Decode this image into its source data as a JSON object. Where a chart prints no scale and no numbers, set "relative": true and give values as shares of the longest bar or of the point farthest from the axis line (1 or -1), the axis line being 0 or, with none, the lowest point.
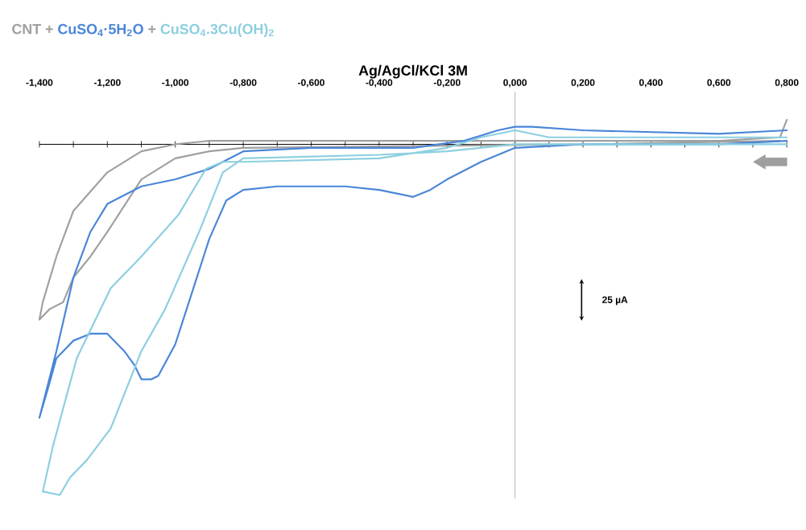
{
  "chart_data": {
    "type": "line",
    "relative": true,
    "xlabel": "Ag/AgCl/KCl 3M",
    "legend": "top left",
    "annotations": [
      "+",
      "+",
      "25 µA"
    ],
    "xlim": [
      -1.4,
      0.8
    ],
    "xticks": [
      {
        "value": -1.4,
        "label": "-1,400"
      },
      {
        "value": -1.2,
        "label": "-1,200"
      },
      {
        "value": -1.0,
        "label": "-1,000"
      },
      {
        "value": -0.8,
        "label": "-0,800"
      },
      {
        "value": -0.6,
        "label": "-0,600"
      },
      {
        "value": -0.4,
        "label": "-0,400"
      },
      {
        "value": -0.2,
        "label": "-0,200"
      },
      {
        "value": 0,
        "label": "0,000"
      },
      {
        "value": 0.2,
        "label": "0,200"
      },
      {
        "value": 0.4,
        "label": "0,400"
      },
      {
        "value": 0.6,
        "label": "0,600"
      },
      {
        "value": 0.8,
        "label": "0,800"
      }
    ],
    "series": [
      {
        "name": "CNT",
        "color": "#a0a0a0",
        "x": [
          0.8,
          0.78,
          0.6,
          -0.9,
          -1.0,
          -1.1,
          -1.2,
          -1.3,
          -1.35,
          -1.39,
          -1.4,
          -1.37,
          -1.33,
          -1.3,
          -1.25,
          -1.2,
          -1.1,
          -1.0,
          -0.9,
          -0.8,
          0.2,
          0.78
        ],
        "values": [
          0.07,
          0.02,
          0.01,
          0.01,
          0,
          -0.02,
          -0.08,
          -0.19,
          -0.32,
          -0.45,
          -0.5,
          -0.47,
          -0.45,
          -0.38,
          -0.32,
          -0.25,
          -0.1,
          -0.04,
          -0.02,
          -0.01,
          0,
          0.01
        ]
      },
      {
        "name": "CuSO$_{4}$·5H$_{2}$O",
        "color": "#4a86d8",
        "x": [
          0.8,
          0.6,
          0.2,
          0.05,
          0.0,
          -0.05,
          -0.15,
          -0.3,
          -0.6,
          -0.8,
          -0.9,
          -1.0,
          -1.1,
          -1.2,
          -1.25,
          -1.3,
          -1.35,
          -1.4,
          -1.37,
          -1.35,
          -1.3,
          -1.25,
          -1.2,
          -1.15,
          -1.12,
          -1.1,
          -1.07,
          -1.05,
          -1.0,
          -0.95,
          -0.9,
          -0.85,
          -0.8,
          -0.7,
          -0.5,
          -0.4,
          -0.3,
          -0.25,
          -0.2,
          -0.1,
          0.0,
          0.2,
          0.6,
          0.8
        ],
        "values": [
          0.04,
          0.03,
          0.04,
          0.05,
          0.05,
          0.04,
          0.01,
          -0.01,
          -0.01,
          -0.02,
          -0.07,
          -0.1,
          -0.12,
          -0.17,
          -0.25,
          -0.38,
          -0.59,
          -0.78,
          -0.68,
          -0.61,
          -0.56,
          -0.54,
          -0.54,
          -0.59,
          -0.63,
          -0.67,
          -0.67,
          -0.66,
          -0.57,
          -0.42,
          -0.27,
          -0.16,
          -0.13,
          -0.12,
          -0.12,
          -0.13,
          -0.15,
          -0.13,
          -0.1,
          -0.05,
          -0.01,
          0,
          0,
          0.01
        ]
      },
      {
        "name": "CuSO$_{4}$.3Cu(OH)$_{2}$",
        "color": "#8ccfe0",
        "x": [
          0.8,
          0.4,
          0.1,
          0.0,
          -0.1,
          -0.2,
          -0.4,
          -0.8,
          -0.86,
          -0.91,
          -0.99,
          -1.1,
          -1.19,
          -1.29,
          -1.36,
          -1.39,
          -1.34,
          -1.31,
          -1.26,
          -1.19,
          -1.1,
          -1.03,
          -0.93,
          -0.86,
          -0.8,
          -0.4,
          -0.2,
          0.0,
          0.4,
          0.8
        ],
        "values": [
          0.02,
          0.02,
          0.02,
          0.04,
          0.02,
          -0.01,
          -0.04,
          -0.05,
          -0.05,
          -0.07,
          -0.2,
          -0.32,
          -0.41,
          -0.61,
          -0.86,
          -0.99,
          -1.0,
          -0.95,
          -0.9,
          -0.81,
          -0.59,
          -0.47,
          -0.25,
          -0.08,
          -0.04,
          -0.03,
          -0.02,
          0,
          0,
          0
        ]
      }
    ]
  }
}
